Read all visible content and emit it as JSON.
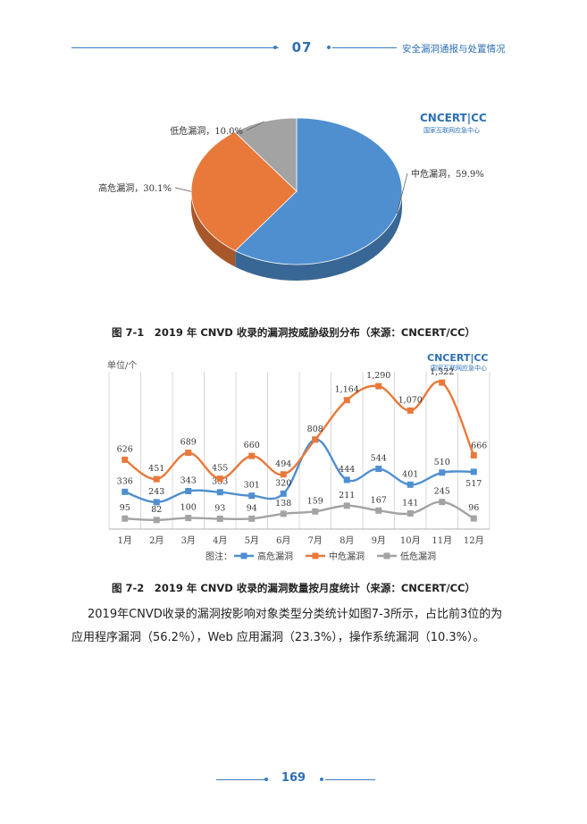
{
  "header": {
    "chapter": "07",
    "title": "安全漏洞通报与处置情况"
  },
  "logo": {
    "brand": "CNCERT|CC",
    "subtitle": "国家互联网应急中心"
  },
  "figure1": {
    "caption": "图 7-1　2019 年 CNVD 收录的漏洞按威胁级别分布（来源：CNCERT/CC）",
    "chart_data": {
      "type": "pie",
      "labels": [
        "中危漏洞",
        "高危漏洞",
        "低危漏洞"
      ],
      "values": [
        59.9,
        30.1,
        10.0
      ],
      "display_labels": [
        "中危漏洞，59.9%",
        "高危漏洞，30.1%",
        "低危漏洞，10.0%"
      ],
      "colors": [
        "#4f8fcf",
        "#e8793a",
        "#a3a3a3"
      ],
      "style": "3d"
    }
  },
  "figure2": {
    "caption": "图 7-2　2019 年 CNVD 收录的漏洞数量按月度统计（来源：CNCERT/CC）",
    "chart_data": {
      "type": "line",
      "ylabel": "单位/个",
      "categories": [
        "1月",
        "2月",
        "3月",
        "4月",
        "5月",
        "6月",
        "7月",
        "8月",
        "9月",
        "10月",
        "11月",
        "12月"
      ],
      "series": [
        {
          "name": "高危漏洞",
          "color": "#4f8fcf",
          "values": [
            336,
            243,
            343,
            333,
            301,
            320,
            808,
            444,
            544,
            401,
            510,
            517
          ]
        },
        {
          "name": "中危漏洞",
          "color": "#e8793a",
          "values": [
            626,
            451,
            689,
            455,
            660,
            494,
            808,
            1164,
            1290,
            1070,
            1322,
            666
          ]
        },
        {
          "name": "低危漏洞",
          "color": "#a3a3a3",
          "values": [
            95,
            82,
            100,
            93,
            94,
            138,
            159,
            211,
            167,
            141,
            245,
            96
          ]
        }
      ],
      "data_labels": [
        [
          "336",
          "243",
          "343",
          "333",
          "301",
          "320",
          "",
          "444",
          "544",
          "401",
          "510",
          "517"
        ],
        [
          "626",
          "451",
          "689",
          "455",
          "660",
          "494",
          "808",
          "1,164",
          "1,290",
          "1,070",
          "1,322",
          "666"
        ],
        [
          "95",
          "82",
          "100",
          "93",
          "94",
          "138",
          "159",
          "211",
          "167",
          "141",
          "245",
          "96"
        ]
      ],
      "legend_prefix": "图注：",
      "legend_position": "bottom",
      "grid": "vertical"
    }
  },
  "paragraph": {
    "line1": "2019年CNVD收录的漏洞按影响对象类型分类统计如图7-3所示，占比前3位的为",
    "line2": "应用程序漏洞（56.2％），Web 应用漏洞（23.3%），操作系统漏洞（10.3%）。"
  },
  "page_number": "169"
}
